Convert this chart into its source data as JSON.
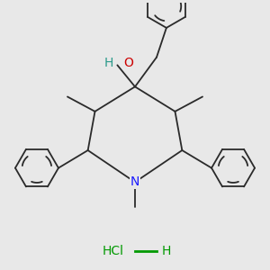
{
  "background_color": "#e8e8e8",
  "figsize": [
    3.0,
    3.0
  ],
  "dpi": 100,
  "bond_color": "#2a2a2a",
  "N_color": "#1a1aff",
  "O_color": "#cc0000",
  "H_color": "#009900",
  "Cl_color": "#009900",
  "label_fontsize": 10,
  "small_fontsize": 8,
  "xlim": [
    -1.35,
    1.35
  ],
  "ylim": [
    -1.35,
    1.35
  ]
}
